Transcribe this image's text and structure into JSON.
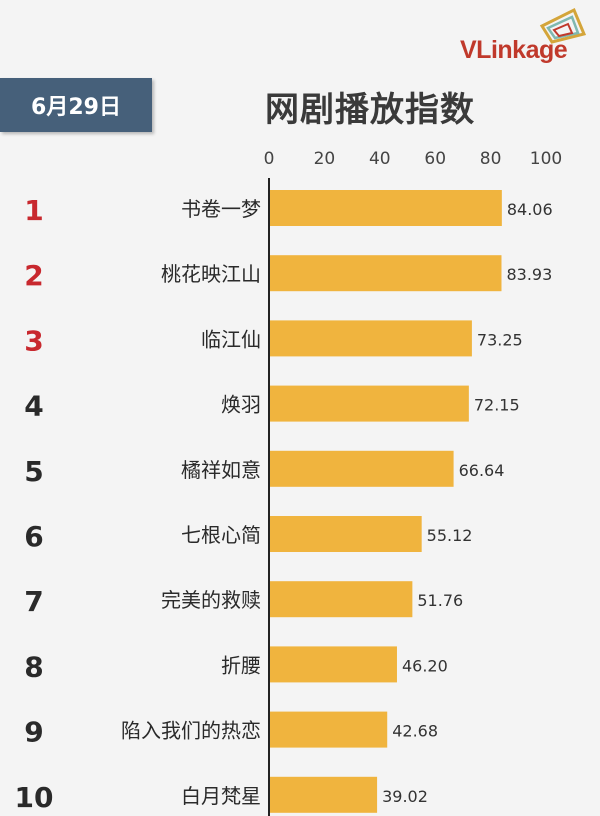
{
  "header": {
    "date": "6月29日",
    "title": "网剧播放指数",
    "logo_text": "VLinkage"
  },
  "colors": {
    "bar": "#f0b43e",
    "rank_top3": "#c8282e",
    "rank_other": "#2a2a2a",
    "badge": "#46607a"
  },
  "chart_data": {
    "type": "bar",
    "orientation": "horizontal",
    "title": "网剧播放指数",
    "xlim": [
      0,
      100
    ],
    "xticks": [
      0,
      20,
      40,
      60,
      80,
      100
    ],
    "ranks": [
      "1",
      "2",
      "3",
      "4",
      "5",
      "6",
      "7",
      "8",
      "9",
      "10"
    ],
    "categories": [
      "书卷一梦",
      "桃花映江山",
      "临江仙",
      "焕羽",
      "橘祥如意",
      "七根心简",
      "完美的救赎",
      "折腰",
      "陷入我们的热恋",
      "白月梵星"
    ],
    "values": [
      84.06,
      83.93,
      73.25,
      72.15,
      66.64,
      55.12,
      51.76,
      46.2,
      42.68,
      39.02
    ],
    "value_labels": [
      "84.06",
      "83.93",
      "73.25",
      "72.15",
      "66.64",
      "55.12",
      "51.76",
      "46.20",
      "42.68",
      "39.02"
    ],
    "grid": false,
    "legend": "none"
  }
}
